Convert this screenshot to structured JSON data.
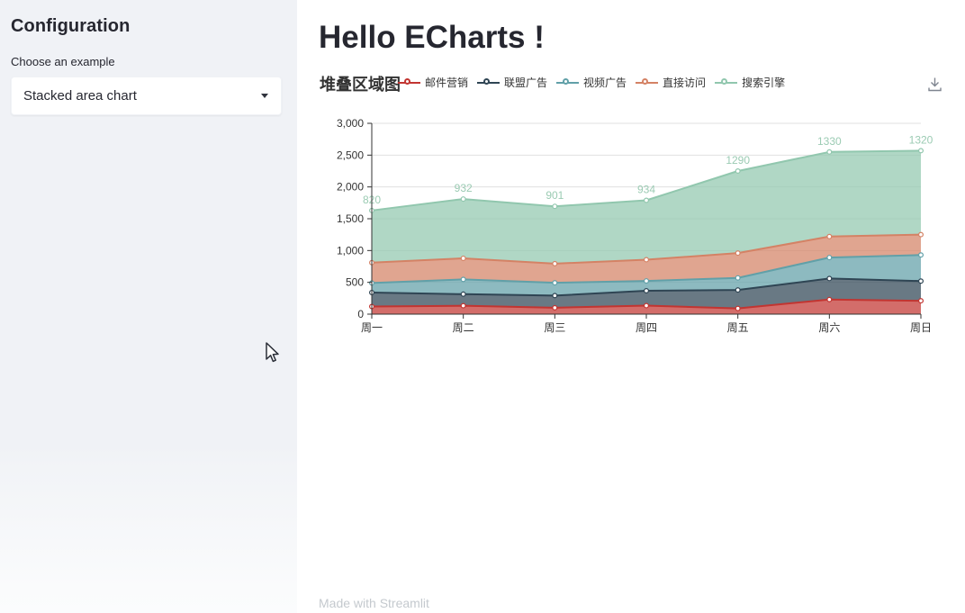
{
  "sidebar": {
    "title": "Configuration",
    "select_label": "Choose an example",
    "select_value": "Stacked area chart"
  },
  "main": {
    "title": "Hello ECharts !",
    "footer": "Made with Streamlit"
  },
  "icons": {
    "select_caret": "chevron-down-icon",
    "download": "download-icon",
    "mouse": "mouse-cursor"
  },
  "chart_data": {
    "type": "area",
    "stacked": true,
    "title": "堆叠区域图",
    "categories": [
      "周一",
      "周二",
      "周三",
      "周四",
      "周五",
      "周六",
      "周日"
    ],
    "series": [
      {
        "name": "邮件营销",
        "color": "#c23531",
        "values": [
          120,
          132,
          101,
          134,
          90,
          230,
          210
        ]
      },
      {
        "name": "联盟广告",
        "color": "#2f4554",
        "values": [
          220,
          182,
          191,
          234,
          290,
          330,
          310
        ]
      },
      {
        "name": "视频广告",
        "color": "#61a0a8",
        "values": [
          150,
          232,
          201,
          154,
          190,
          330,
          410
        ]
      },
      {
        "name": "直接访问",
        "color": "#d48265",
        "values": [
          320,
          332,
          301,
          334,
          390,
          330,
          320
        ]
      },
      {
        "name": "搜索引擎",
        "color": "#91c7ae",
        "values": [
          820,
          932,
          901,
          934,
          1290,
          1330,
          1320
        ],
        "show_labels": true,
        "label_color": "#9bcbb3",
        "visible_labels": [
          "820",
          "932",
          "901",
          "934",
          "1290",
          "1330",
          "1320"
        ]
      }
    ],
    "xlabel": "",
    "ylabel": "",
    "ylim": [
      0,
      3000
    ],
    "yticks": [
      0,
      500,
      1000,
      1500,
      2000,
      2500,
      3000
    ],
    "ytick_labels": [
      "0",
      "500",
      "1,000",
      "1,500",
      "2,000",
      "2,500",
      "3,000"
    ],
    "legend_position": "top",
    "grid": true,
    "area_opacity": 0.72,
    "axis_color": "#333333",
    "gridline_color": "#e0e0e0",
    "tick_label_color": "#333333"
  }
}
